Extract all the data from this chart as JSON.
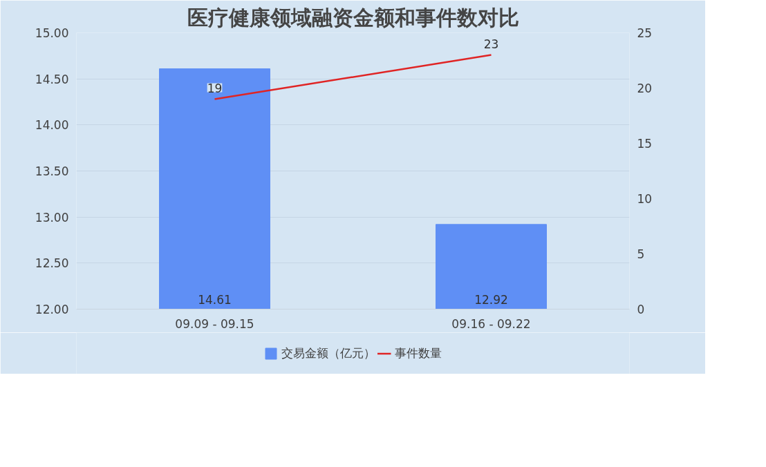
{
  "chart_data": {
    "type": "bar",
    "title": "医疗健康领域融资金额和事件数对比",
    "categories": [
      "09.09 - 09.15",
      "09.16 - 09.22"
    ],
    "series": [
      {
        "name": "交易金额（亿元）",
        "color": "#5f8ff5",
        "values": [
          14.61,
          12.92
        ]
      },
      {
        "name": "事件数量",
        "type": "line",
        "color": "#e02424",
        "axis": "y2",
        "values": [
          19,
          23
        ]
      }
    ],
    "ylim": [
      12,
      15
    ],
    "yticks": [
      {
        "value": 12,
        "label": "12.00"
      },
      {
        "value": 12.5,
        "label": "12.50"
      },
      {
        "value": 13,
        "label": "13.00"
      },
      {
        "value": 13.5,
        "label": "13.50"
      },
      {
        "value": 14,
        "label": "14.00"
      },
      {
        "value": 14.5,
        "label": "14.50"
      },
      {
        "value": 15,
        "label": "15.00"
      }
    ],
    "y2lim": [
      0,
      25
    ],
    "y2ticks": [
      0,
      5,
      10,
      15,
      20,
      25
    ],
    "grid": "y",
    "legend": "bottom",
    "data_labels": true,
    "marker": "none",
    "line_style": "solid"
  }
}
